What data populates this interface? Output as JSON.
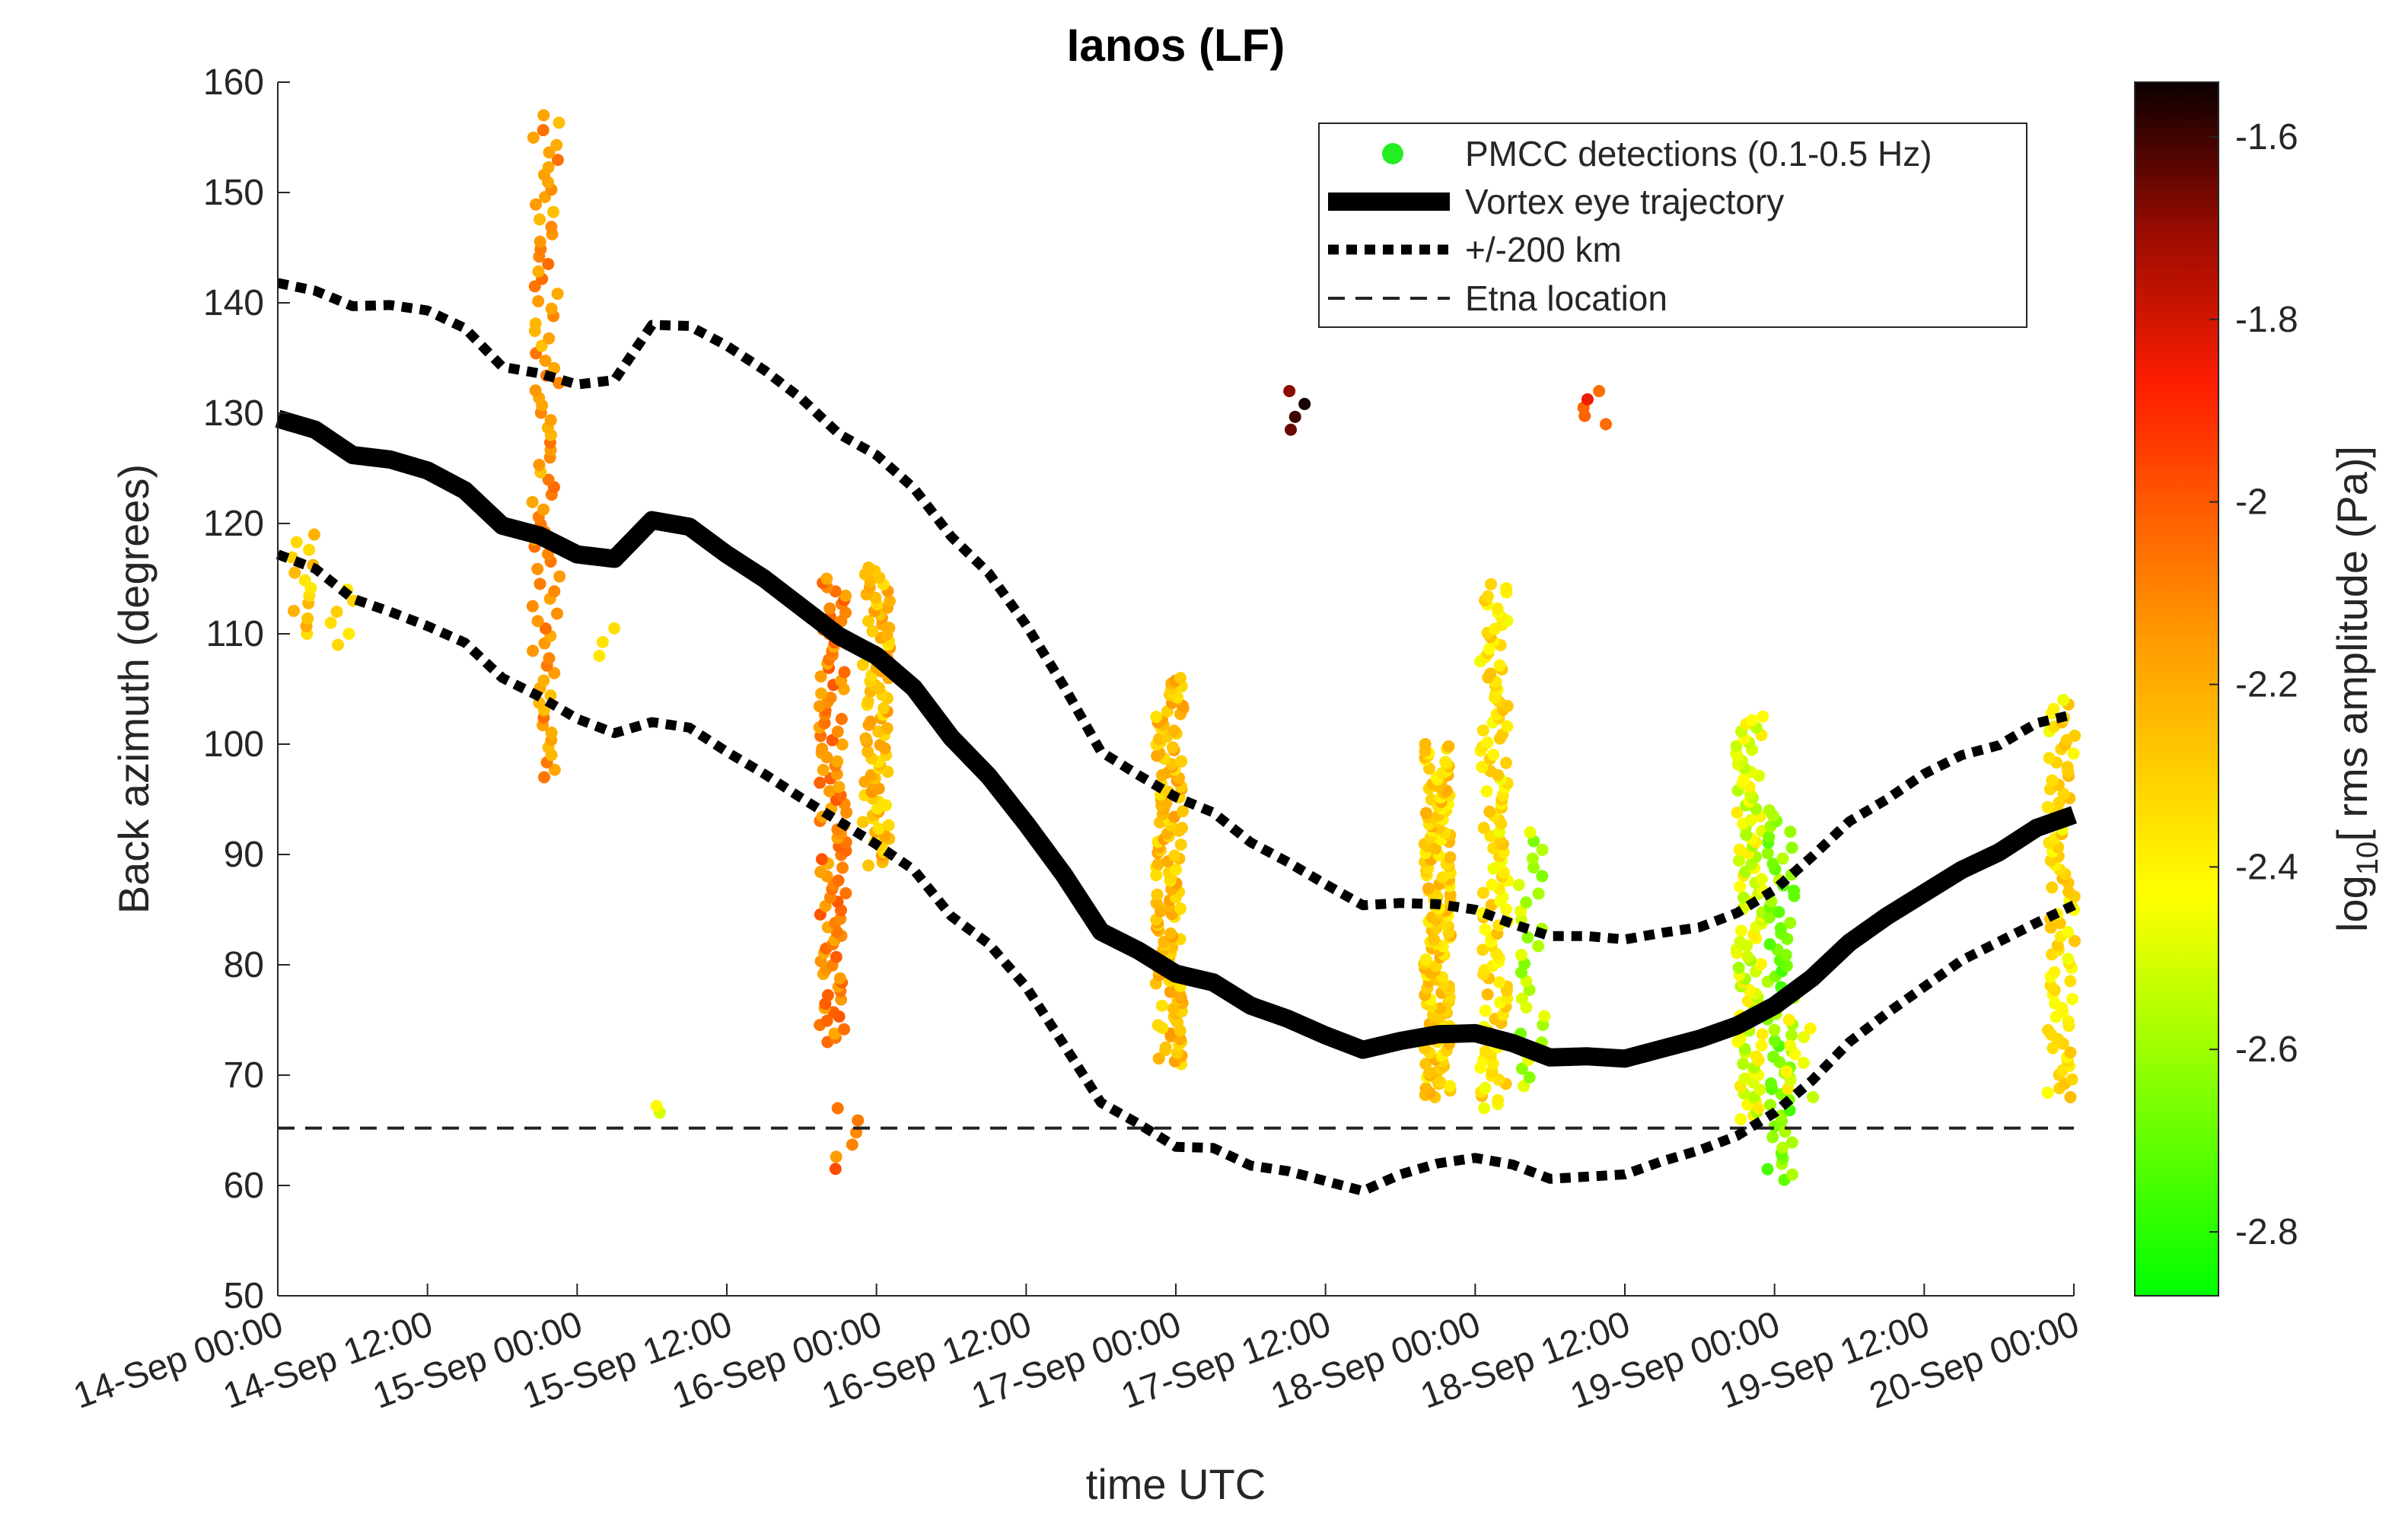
{
  "chart_data": {
    "type": "scatter",
    "title": "Ianos (LF)",
    "xlabel": "time UTC",
    "ylabel": "Back azimuth (degrees)",
    "ylim": [
      50,
      160
    ],
    "xlim_hours": [
      0,
      144
    ],
    "y_ticks": [
      "50",
      "60",
      "70",
      "80",
      "90",
      "100",
      "110",
      "120",
      "130",
      "140",
      "150",
      "160"
    ],
    "x_tick_labels": [
      "14-Sep 00:00",
      "14-Sep 12:00",
      "15-Sep 00:00",
      "15-Sep 12:00",
      "16-Sep 00:00",
      "16-Sep 12:00",
      "17-Sep 00:00",
      "17-Sep 12:00",
      "18-Sep 00:00",
      "18-Sep 12:00",
      "19-Sep 00:00",
      "19-Sep 12:00",
      "20-Sep 00:00"
    ],
    "colorbar": {
      "label_prefix": "log",
      "label_sub": "10",
      "label_suffix": "[ rms amplitude (Pa)]",
      "range": [
        -2.87,
        -1.54
      ],
      "ticks": [
        "-1.6",
        "-1.8",
        "-2",
        "-2.2",
        "-2.4",
        "-2.6",
        "-2.8"
      ]
    },
    "legend": {
      "position": "top-right",
      "entries": [
        "PMCC detections (0.1-0.5 Hz)",
        "Vortex eye trajectory",
        "+/-200 km",
        "Etna location"
      ]
    },
    "etna_location_deg": 65.2,
    "series": [
      {
        "name": "Vortex eye trajectory",
        "style": "solid-thick",
        "points": [
          [
            0,
            129.5
          ],
          [
            3,
            128.5
          ],
          [
            6,
            126.2
          ],
          [
            9,
            125.8
          ],
          [
            12,
            124.8
          ],
          [
            15,
            123
          ],
          [
            18,
            119.8
          ],
          [
            21,
            118.9
          ],
          [
            24,
            117.2
          ],
          [
            27,
            116.8
          ],
          [
            30,
            120.3
          ],
          [
            33,
            119.7
          ],
          [
            36,
            117.2
          ],
          [
            39,
            115
          ],
          [
            42,
            112.4
          ],
          [
            45,
            109.8
          ],
          [
            48,
            108
          ],
          [
            51,
            105.1
          ],
          [
            54,
            100.6
          ],
          [
            57,
            97.1
          ],
          [
            60,
            92.8
          ],
          [
            63,
            88.2
          ],
          [
            66,
            83
          ],
          [
            69,
            81.3
          ],
          [
            72,
            79.2
          ],
          [
            75,
            78.4
          ],
          [
            78,
            76.3
          ],
          [
            81,
            75.1
          ],
          [
            84,
            73.6
          ],
          [
            87,
            72.3
          ],
          [
            90,
            73.1
          ],
          [
            93,
            73.7
          ],
          [
            96,
            73.8
          ],
          [
            99,
            72.9
          ],
          [
            102,
            71.6
          ],
          [
            105,
            71.7
          ],
          [
            108,
            71.5
          ],
          [
            111,
            72.4
          ],
          [
            114,
            73.3
          ],
          [
            117,
            74.5
          ],
          [
            120,
            76.3
          ],
          [
            123,
            78.8
          ],
          [
            126,
            82
          ],
          [
            129,
            84.4
          ],
          [
            132,
            86.5
          ],
          [
            135,
            88.6
          ],
          [
            138,
            90.2
          ],
          [
            141,
            92.4
          ],
          [
            144,
            93.6
          ]
        ]
      },
      {
        "name": "+/-200 km (upper)",
        "style": "dotted-thick",
        "points": [
          [
            0,
            141.8
          ],
          [
            3,
            141.1
          ],
          [
            6,
            139.7
          ],
          [
            9,
            139.8
          ],
          [
            12,
            139.3
          ],
          [
            15,
            137.7
          ],
          [
            18,
            134.2
          ],
          [
            21,
            133.6
          ],
          [
            24,
            132.6
          ],
          [
            27,
            133
          ],
          [
            30,
            138
          ],
          [
            33,
            137.9
          ],
          [
            36,
            136.1
          ],
          [
            39,
            133.9
          ],
          [
            42,
            131.3
          ],
          [
            45,
            128.1
          ],
          [
            48,
            126.2
          ],
          [
            51,
            123.2
          ],
          [
            54,
            118.8
          ],
          [
            57,
            115.5
          ],
          [
            60,
            110.8
          ],
          [
            63,
            105.3
          ],
          [
            66,
            99.3
          ],
          [
            69,
            97.2
          ],
          [
            72,
            95.2
          ],
          [
            75,
            93.8
          ],
          [
            78,
            91.1
          ],
          [
            81,
            89.3
          ],
          [
            84,
            87.3
          ],
          [
            87,
            85.4
          ],
          [
            90,
            85.6
          ],
          [
            93,
            85.5
          ],
          [
            96,
            85
          ],
          [
            99,
            83.7
          ],
          [
            102,
            82.6
          ],
          [
            105,
            82.6
          ],
          [
            108,
            82.3
          ],
          [
            111,
            82.9
          ],
          [
            114,
            83.4
          ],
          [
            117,
            84.7
          ],
          [
            120,
            86.8
          ],
          [
            123,
            89.8
          ],
          [
            126,
            93
          ],
          [
            129,
            95
          ],
          [
            132,
            97.3
          ],
          [
            135,
            99
          ],
          [
            138,
            99.9
          ],
          [
            141,
            101.9
          ],
          [
            144,
            102.7
          ]
        ]
      },
      {
        "name": "+/-200 km (lower)",
        "style": "dotted-thick",
        "points": [
          [
            0,
            117.2
          ],
          [
            3,
            115.9
          ],
          [
            6,
            113.2
          ],
          [
            9,
            112
          ],
          [
            12,
            110.7
          ],
          [
            15,
            109.2
          ],
          [
            18,
            106
          ],
          [
            21,
            104.3
          ],
          [
            24,
            102.3
          ],
          [
            27,
            101
          ],
          [
            30,
            102
          ],
          [
            33,
            101.5
          ],
          [
            36,
            99.3
          ],
          [
            39,
            97.3
          ],
          [
            42,
            95.1
          ],
          [
            45,
            93
          ],
          [
            48,
            90.9
          ],
          [
            51,
            88.6
          ],
          [
            54,
            84.4
          ],
          [
            57,
            81.9
          ],
          [
            60,
            78
          ],
          [
            63,
            72.8
          ],
          [
            66,
            67.5
          ],
          [
            69,
            65.6
          ],
          [
            72,
            63.5
          ],
          [
            75,
            63.4
          ],
          [
            78,
            61.8
          ],
          [
            81,
            61.3
          ],
          [
            84,
            60.4
          ],
          [
            87,
            59.5
          ],
          [
            90,
            61
          ],
          [
            93,
            62
          ],
          [
            96,
            62.5
          ],
          [
            99,
            61.9
          ],
          [
            102,
            60.6
          ],
          [
            105,
            60.8
          ],
          [
            108,
            61
          ],
          [
            111,
            62.2
          ],
          [
            114,
            63.2
          ],
          [
            117,
            64.5
          ],
          [
            120,
            66.6
          ],
          [
            123,
            69.5
          ],
          [
            126,
            73
          ],
          [
            129,
            75.6
          ],
          [
            132,
            78
          ],
          [
            135,
            80.4
          ],
          [
            138,
            82.1
          ],
          [
            141,
            83.8
          ],
          [
            144,
            85.4
          ]
        ]
      }
    ],
    "detection_clusters": [
      {
        "t": 2,
        "ymin": 110,
        "ymax": 119,
        "count": 14,
        "amp": -2.3
      },
      {
        "t": 5,
        "ymin": 109,
        "ymax": 114,
        "count": 6,
        "amp": -2.3
      },
      {
        "t": 21.5,
        "ymin": 97,
        "ymax": 157,
        "count": 90,
        "amp": -2.15
      },
      {
        "t": 26.5,
        "ymin": 108,
        "ymax": 110.5,
        "count": 3,
        "amp": -2.45
      },
      {
        "t": 30,
        "ymin": 66.6,
        "ymax": 67.2,
        "count": 2,
        "amp": -2.5
      },
      {
        "t": 44.5,
        "ymin": 73,
        "ymax": 115,
        "count": 110,
        "amp": -2.1
      },
      {
        "t": 45.5,
        "ymin": 61.5,
        "ymax": 67,
        "count": 6,
        "amp": -2.05
      },
      {
        "t": 48,
        "ymin": 89,
        "ymax": 116,
        "count": 90,
        "amp": -2.25
      },
      {
        "t": 71.5,
        "ymin": 71,
        "ymax": 106,
        "count": 140,
        "amp": -2.25
      },
      {
        "t": 81.3,
        "ymin": 128.5,
        "ymax": 132,
        "count": 4,
        "amp": -1.62
      },
      {
        "t": 93,
        "ymin": 68,
        "ymax": 100,
        "count": 160,
        "amp": -2.3
      },
      {
        "t": 97.5,
        "ymin": 67,
        "ymax": 114.5,
        "count": 130,
        "amp": -2.35
      },
      {
        "t": 100.5,
        "ymin": 69,
        "ymax": 92,
        "count": 30,
        "amp": -2.55
      },
      {
        "t": 105.5,
        "ymin": 129,
        "ymax": 132,
        "count": 5,
        "amp": -1.95
      },
      {
        "t": 118,
        "ymin": 66,
        "ymax": 102.5,
        "count": 110,
        "amp": -2.48
      },
      {
        "t": 120.5,
        "ymin": 60.5,
        "ymax": 94,
        "count": 70,
        "amp": -2.65
      },
      {
        "t": 122,
        "ymin": 68,
        "ymax": 75,
        "count": 10,
        "amp": -2.45
      },
      {
        "t": 143,
        "ymin": 68,
        "ymax": 104,
        "count": 90,
        "amp": -2.35
      }
    ]
  }
}
